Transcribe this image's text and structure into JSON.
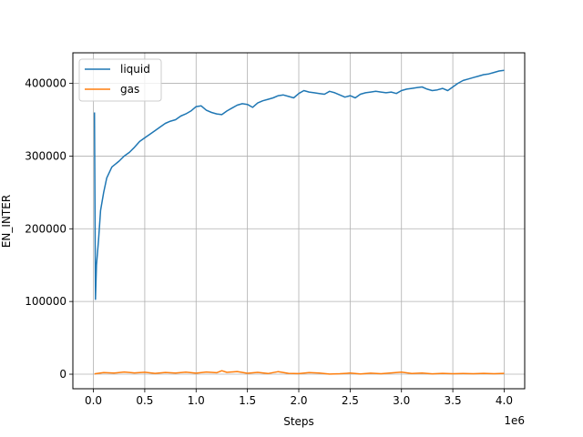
{
  "chart_data": {
    "type": "line",
    "xlabel": "Steps",
    "ylabel": "EN_INTER",
    "x_offset_label": "1e6",
    "xlim": [
      -0.2,
      4.2
    ],
    "ylim": [
      -20000,
      442000
    ],
    "x_ticks": [
      0.0,
      0.5,
      1.0,
      1.5,
      2.0,
      2.5,
      3.0,
      3.5,
      4.0
    ],
    "x_tick_labels": [
      "0.0",
      "0.5",
      "1.0",
      "1.5",
      "2.0",
      "2.5",
      "3.0",
      "3.5",
      "4.0"
    ],
    "y_ticks": [
      0,
      100000,
      200000,
      300000,
      400000
    ],
    "y_tick_labels": [
      "0",
      "100000",
      "200000",
      "300000",
      "400000"
    ],
    "grid": true,
    "legend_position": "top-left",
    "series": [
      {
        "name": "liquid",
        "color": "#1f77b4",
        "points": [
          [
            0.01,
            360000
          ],
          [
            0.02,
            103000
          ],
          [
            0.03,
            150000
          ],
          [
            0.05,
            185000
          ],
          [
            0.07,
            225000
          ],
          [
            0.1,
            250000
          ],
          [
            0.13,
            270000
          ],
          [
            0.18,
            285000
          ],
          [
            0.25,
            293000
          ],
          [
            0.3,
            300000
          ],
          [
            0.35,
            305000
          ],
          [
            0.4,
            312000
          ],
          [
            0.45,
            320000
          ],
          [
            0.5,
            325000
          ],
          [
            0.55,
            330000
          ],
          [
            0.6,
            335000
          ],
          [
            0.65,
            340000
          ],
          [
            0.7,
            345000
          ],
          [
            0.75,
            348000
          ],
          [
            0.8,
            350000
          ],
          [
            0.85,
            355000
          ],
          [
            0.9,
            358000
          ],
          [
            0.95,
            362000
          ],
          [
            1.0,
            368000
          ],
          [
            1.05,
            369000
          ],
          [
            1.1,
            363000
          ],
          [
            1.15,
            360000
          ],
          [
            1.2,
            358000
          ],
          [
            1.25,
            357000
          ],
          [
            1.3,
            362000
          ],
          [
            1.35,
            366000
          ],
          [
            1.4,
            370000
          ],
          [
            1.45,
            372000
          ],
          [
            1.5,
            371000
          ],
          [
            1.55,
            367000
          ],
          [
            1.6,
            373000
          ],
          [
            1.65,
            376000
          ],
          [
            1.7,
            378000
          ],
          [
            1.75,
            380000
          ],
          [
            1.8,
            383000
          ],
          [
            1.85,
            384000
          ],
          [
            1.9,
            382000
          ],
          [
            1.95,
            380000
          ],
          [
            2.0,
            386000
          ],
          [
            2.05,
            390000
          ],
          [
            2.1,
            388000
          ],
          [
            2.15,
            387000
          ],
          [
            2.2,
            386000
          ],
          [
            2.25,
            385000
          ],
          [
            2.3,
            389000
          ],
          [
            2.35,
            387000
          ],
          [
            2.4,
            384000
          ],
          [
            2.45,
            381000
          ],
          [
            2.5,
            383000
          ],
          [
            2.55,
            380000
          ],
          [
            2.6,
            385000
          ],
          [
            2.65,
            387000
          ],
          [
            2.7,
            388000
          ],
          [
            2.75,
            389000
          ],
          [
            2.8,
            388000
          ],
          [
            2.85,
            387000
          ],
          [
            2.9,
            388000
          ],
          [
            2.95,
            386000
          ],
          [
            3.0,
            390000
          ],
          [
            3.05,
            392000
          ],
          [
            3.1,
            393000
          ],
          [
            3.15,
            394000
          ],
          [
            3.2,
            395000
          ],
          [
            3.25,
            392000
          ],
          [
            3.3,
            390000
          ],
          [
            3.35,
            391000
          ],
          [
            3.4,
            393000
          ],
          [
            3.45,
            390000
          ],
          [
            3.5,
            395000
          ],
          [
            3.55,
            400000
          ],
          [
            3.6,
            404000
          ],
          [
            3.65,
            406000
          ],
          [
            3.7,
            408000
          ],
          [
            3.75,
            410000
          ],
          [
            3.8,
            412000
          ],
          [
            3.85,
            413000
          ],
          [
            3.9,
            415000
          ],
          [
            3.95,
            417000
          ],
          [
            4.0,
            418000
          ]
        ]
      },
      {
        "name": "gas",
        "color": "#ff7f0e",
        "points": [
          [
            0.01,
            500
          ],
          [
            0.1,
            2200
          ],
          [
            0.2,
            1500
          ],
          [
            0.3,
            3000
          ],
          [
            0.4,
            1800
          ],
          [
            0.5,
            2600
          ],
          [
            0.6,
            1200
          ],
          [
            0.7,
            2400
          ],
          [
            0.8,
            1600
          ],
          [
            0.9,
            2900
          ],
          [
            1.0,
            1400
          ],
          [
            1.1,
            3100
          ],
          [
            1.2,
            2000
          ],
          [
            1.25,
            4800
          ],
          [
            1.3,
            2500
          ],
          [
            1.4,
            3700
          ],
          [
            1.5,
            1300
          ],
          [
            1.6,
            2500
          ],
          [
            1.7,
            900
          ],
          [
            1.8,
            3600
          ],
          [
            1.9,
            1100
          ],
          [
            2.0,
            800
          ],
          [
            2.1,
            2200
          ],
          [
            2.2,
            1500
          ],
          [
            2.3,
            200
          ],
          [
            2.4,
            600
          ],
          [
            2.5,
            1500
          ],
          [
            2.6,
            400
          ],
          [
            2.7,
            1400
          ],
          [
            2.8,
            600
          ],
          [
            2.9,
            1800
          ],
          [
            3.0,
            2800
          ],
          [
            3.1,
            1000
          ],
          [
            3.2,
            1600
          ],
          [
            3.3,
            500
          ],
          [
            3.4,
            1200
          ],
          [
            3.5,
            700
          ],
          [
            3.6,
            900
          ],
          [
            3.7,
            600
          ],
          [
            3.8,
            1100
          ],
          [
            3.9,
            700
          ],
          [
            4.0,
            1200
          ]
        ]
      }
    ]
  }
}
